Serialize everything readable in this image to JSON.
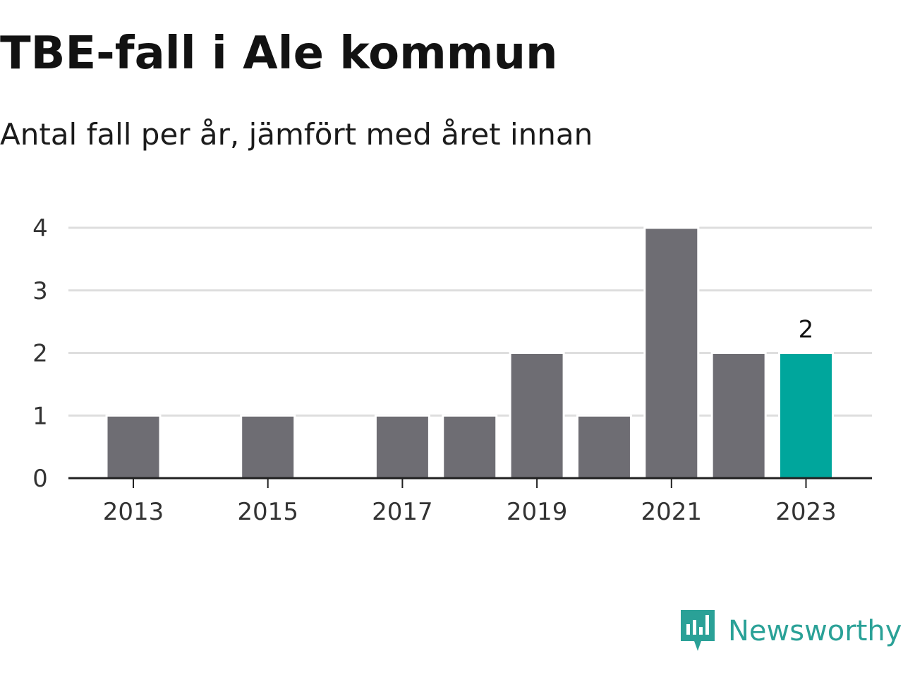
{
  "header": {
    "title": "TBE-fall i Ale kommun",
    "subtitle": "Antal fall per år, jämfört med året innan"
  },
  "colors": {
    "bar": "#6e6d73",
    "highlight": "#00a69c",
    "grid": "#dedede",
    "axis": "#222222",
    "tick_text": "#333333",
    "brand": "#2aa197"
  },
  "brand": {
    "name": "Newsworthy",
    "icon": "newsworthy-logo-icon"
  },
  "chart_data": {
    "type": "bar",
    "categories": [
      "2013",
      "2014",
      "2015",
      "2016",
      "2017",
      "2018",
      "2019",
      "2020",
      "2021",
      "2022",
      "2023"
    ],
    "values": [
      1,
      0,
      1,
      0,
      1,
      1,
      2,
      1,
      4,
      2,
      2
    ],
    "x_tick_labels": [
      "2013",
      "2015",
      "2017",
      "2019",
      "2021",
      "2023"
    ],
    "y_ticks": [
      0,
      1,
      2,
      3,
      4
    ],
    "ylim": [
      0,
      4
    ],
    "grid": true,
    "highlight_category": "2023",
    "data_labels": [
      {
        "category": "2023",
        "text": "2"
      }
    ],
    "xlabel": "",
    "ylabel": ""
  }
}
